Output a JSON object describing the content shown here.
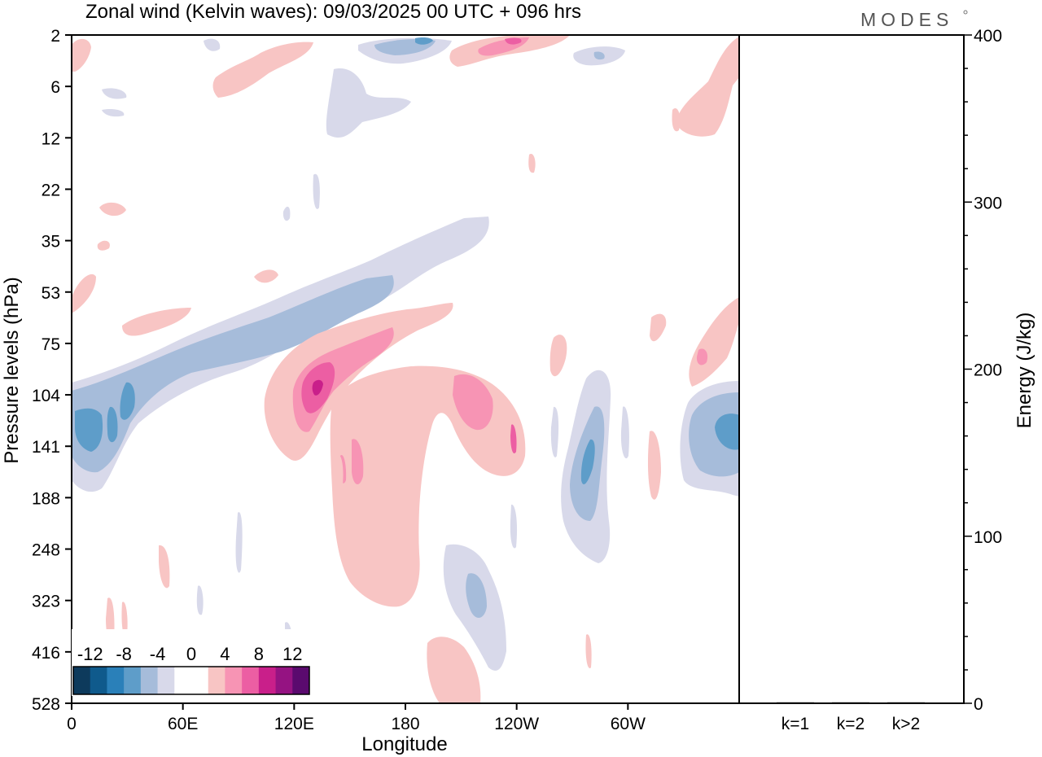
{
  "chart_data": [
    {
      "type": "heatmap",
      "title": "Zonal wind (Kelvin waves):  09/03/2025  00 UTC  + 096 hrs",
      "brand": "MODES",
      "xlabel": "Longitude",
      "ylabel": "Pressure levels (hPa)",
      "x_ticks": [
        "0",
        "60E",
        "120E",
        "180",
        "120W",
        "60W"
      ],
      "x_tick_degrees": [
        0,
        60,
        120,
        180,
        240,
        300
      ],
      "xlim": [
        0,
        360
      ],
      "y_ticks": [
        "2",
        "6",
        "12",
        "22",
        "35",
        "53",
        "75",
        "104",
        "141",
        "188",
        "248",
        "323",
        "416",
        "528"
      ],
      "y_scale": "model levels, pressure increasing downward",
      "colorbar": {
        "labels": [
          "-12",
          "-8",
          "-4",
          "0",
          "4",
          "8",
          "12"
        ],
        "colors": [
          "#0d3a5c",
          "#0f5a8c",
          "#2a80b9",
          "#5e9dc9",
          "#a6bcda",
          "#d8d9ea",
          "#ffffff",
          "#ffffff",
          "#f8c5c4",
          "#f794b4",
          "#ec5ea3",
          "#c91f8a",
          "#951382",
          "#5a0a6e"
        ],
        "placement": "bottom-left"
      },
      "features": [
        {
          "kind": "negative",
          "level": -8,
          "lon": [
            0,
            40
          ],
          "p": [
            104,
            141
          ],
          "note": "core of tilted negative band"
        },
        {
          "kind": "negative",
          "level": -4,
          "lon": [
            0,
            175
          ],
          "p": [
            53,
            188
          ],
          "note": "tilted band rising eastward"
        },
        {
          "kind": "negative",
          "level": -2,
          "lon": [
            130,
            225
          ],
          "p": [
            35,
            75
          ],
          "note": "upper tilted extension"
        },
        {
          "kind": "positive",
          "level": 12,
          "lon": [
            120,
            135
          ],
          "p": [
            90,
            120
          ],
          "note": "maximum near 125E"
        },
        {
          "kind": "positive",
          "level": 6,
          "lon": [
            115,
            175
          ],
          "p": [
            75,
            141
          ],
          "note": "tilted positive band"
        },
        {
          "kind": "positive",
          "level": 2,
          "lon": [
            140,
            195
          ],
          "p": [
            104,
            323
          ],
          "note": "deep positive column"
        },
        {
          "kind": "positive",
          "level": 6,
          "lon": [
            207,
            222
          ],
          "p": [
            104,
            141
          ]
        },
        {
          "kind": "negative",
          "level": -6,
          "lon": [
            270,
            290
          ],
          "p": [
            120,
            220
          ]
        },
        {
          "kind": "negative",
          "level": -8,
          "lon": [
            335,
            360
          ],
          "p": [
            104,
            188
          ]
        },
        {
          "kind": "negative",
          "level": -6,
          "lon": [
            215,
            225
          ],
          "p": [
            248,
            323
          ]
        },
        {
          "kind": "positive",
          "level": 2,
          "lon": [
            190,
            220
          ],
          "p": [
            416,
            528
          ]
        },
        {
          "kind": "positive",
          "level": 6,
          "lon": [
            232,
            250
          ],
          "p": [
            2,
            6
          ]
        },
        {
          "kind": "negative",
          "level": -6,
          "lon": [
            170,
            195
          ],
          "p": [
            2,
            6
          ]
        },
        {
          "kind": "positive",
          "level": 4,
          "lon": [
            330,
            360
          ],
          "p": [
            53,
            104
          ]
        }
      ]
    },
    {
      "type": "bar",
      "title": "",
      "categories": [
        "k=1",
        "k=2",
        "k>2"
      ],
      "values": [
        0.4,
        0.0,
        0.5
      ],
      "ylabel": "Energy (J/kg)",
      "ylim": [
        0,
        400
      ],
      "y_ticks": [
        "0",
        "100",
        "200",
        "300",
        "400"
      ],
      "y_tick_values": [
        0,
        100,
        200,
        300,
        400
      ]
    }
  ]
}
